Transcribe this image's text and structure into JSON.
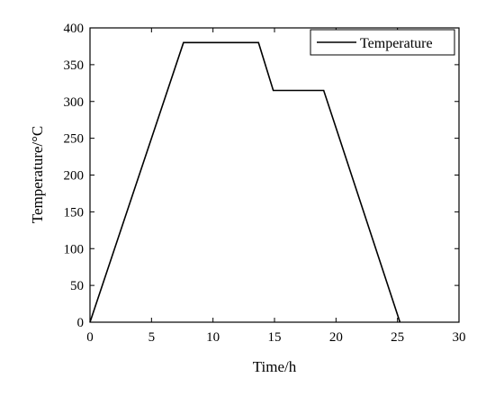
{
  "chart_data": {
    "type": "line",
    "title": "",
    "xlabel": "Time/h",
    "ylabel": "Temperature/°C",
    "xlim": [
      0,
      30
    ],
    "ylim": [
      0,
      400
    ],
    "xticks": [
      0,
      5,
      10,
      15,
      20,
      25,
      30
    ],
    "yticks": [
      0,
      50,
      100,
      150,
      200,
      250,
      300,
      350,
      400
    ],
    "grid": false,
    "legend_position": "top-right",
    "series": [
      {
        "name": "Temperature",
        "color": "#000000",
        "x": [
          0,
          7.6,
          13.7,
          14.9,
          19.0,
          25.2
        ],
        "y": [
          0,
          380,
          380,
          315,
          315,
          0
        ]
      }
    ]
  }
}
